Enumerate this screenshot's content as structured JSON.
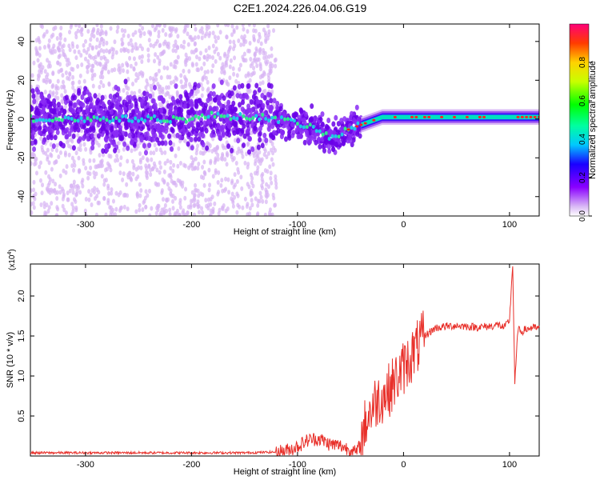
{
  "title": "C2E1.2024.226.04.06.G19",
  "chart_data": [
    {
      "type": "heatmap",
      "xlabel": "Height of straight line (km)",
      "ylabel": "Frequency (Hz)",
      "xlim": [
        -352,
        128
      ],
      "ylim": [
        -50,
        49
      ],
      "xticks": [
        -300,
        -200,
        -100,
        0,
        100
      ],
      "yticks": [
        -40,
        -20,
        0,
        20,
        40
      ],
      "colorbar": {
        "label": "Normalized spectral amplitude",
        "range": [
          0,
          1
        ],
        "ticks": [
          0.0,
          0.2,
          0.4,
          0.6,
          0.8
        ]
      },
      "ridge": {
        "x": [
          -350,
          -300,
          -250,
          -200,
          -180,
          -150,
          -130,
          -120,
          -100,
          -90,
          -80,
          -75,
          -70,
          -65,
          -60,
          -55,
          -50,
          -45,
          -40,
          -35,
          -30,
          -25,
          -20,
          -10,
          0,
          20,
          50,
          100,
          128
        ],
        "y": [
          0,
          0,
          0,
          0,
          2,
          1,
          1,
          0,
          -2,
          -4,
          -6,
          -8,
          -9,
          -10,
          -8,
          -6,
          -5,
          -4,
          -3,
          -2,
          -1,
          0,
          1,
          1,
          1,
          1,
          1,
          1,
          1
        ]
      }
    },
    {
      "type": "line",
      "xlabel": "Height of straight line (km)",
      "ylabel": "SNR (10 * v/v)",
      "yscale_label": "(x10",
      "yscale_exp": "4",
      "xlim": [
        -352,
        128
      ],
      "ylim": [
        0,
        24000
      ],
      "xticks": [
        -300,
        -200,
        -100,
        0,
        100
      ],
      "yticks": [
        5000,
        10000,
        15000,
        20000
      ],
      "ytick_labels": [
        "0.5",
        "1.0",
        "1.5",
        "2.0"
      ],
      "line_color": "#e8302a",
      "series": [
        {
          "x": [
            -352,
            -300,
            -250,
            -200,
            -150,
            -120,
            -110,
            -100,
            -90,
            -80,
            -70,
            -60,
            -50,
            -45,
            -40,
            -38,
            -35,
            -30,
            -25,
            -20,
            -15,
            -10,
            -5,
            0,
            10,
            20,
            25,
            30,
            40,
            50,
            60,
            70,
            80,
            90,
            95,
            100,
            103,
            105,
            108,
            110,
            115,
            120,
            128
          ],
          "y": [
            400,
            400,
            400,
            400,
            400,
            500,
            700,
            1200,
            2000,
            2200,
            1500,
            1300,
            800,
            400,
            1500,
            3000,
            4500,
            6000,
            7000,
            7500,
            8000,
            9000,
            10000,
            11000,
            13000,
            15000,
            15500,
            16000,
            16200,
            16300,
            16200,
            16100,
            16200,
            16400,
            16000,
            17000,
            24000,
            9000,
            16000,
            15500,
            15800,
            16000,
            16000
          ]
        }
      ]
    }
  ]
}
